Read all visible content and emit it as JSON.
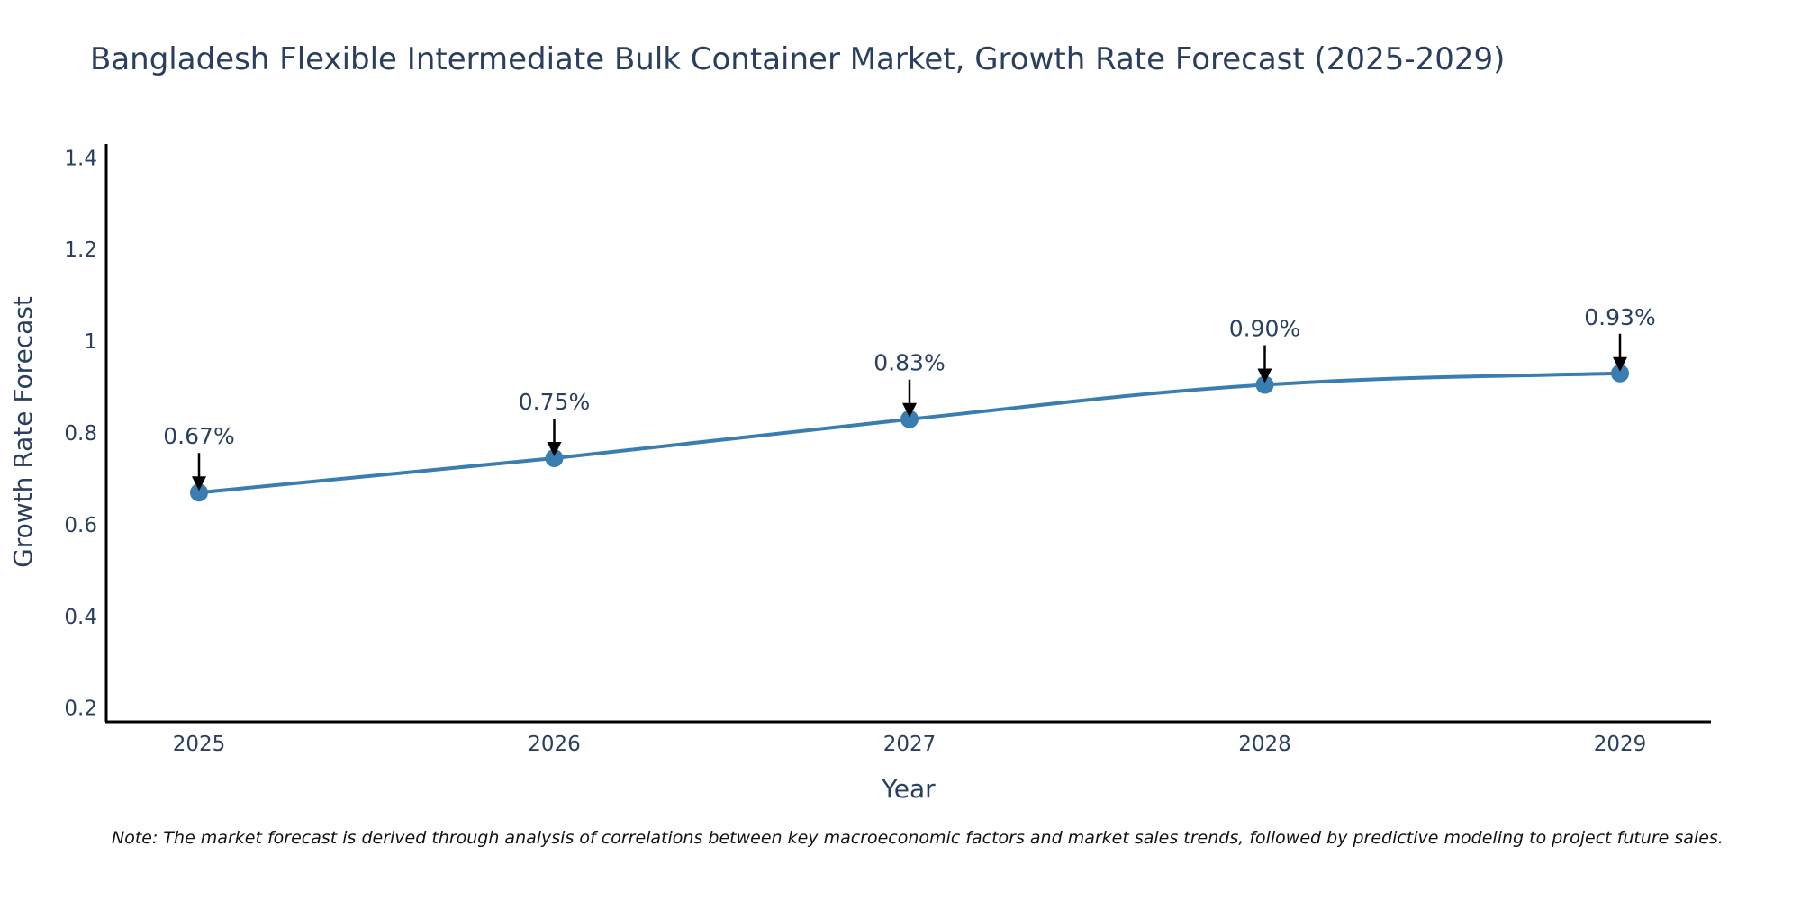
{
  "chart_data": {
    "type": "line",
    "title": "Bangladesh Flexible Intermediate Bulk Container Market, Growth Rate Forecast (2025-2029)",
    "xlabel": "Year",
    "ylabel": "Growth Rate Forecast",
    "categories": [
      "2025",
      "2026",
      "2027",
      "2028",
      "2029"
    ],
    "series": [
      {
        "name": "Growth Rate Forecast",
        "values": [
          0.67,
          0.745,
          0.83,
          0.905,
          0.93
        ],
        "color": "#3a7db0"
      }
    ],
    "annotations": [
      "0.67%",
      "0.75%",
      "0.83%",
      "0.90%",
      "0.93%"
    ],
    "yticks": [
      0.2,
      0.4,
      0.6,
      0.8,
      1.0,
      1.2,
      1.4
    ],
    "ytick_labels": [
      "0.2",
      "0.4",
      "0.6",
      "0.8",
      "1",
      "1.2",
      "1.4"
    ],
    "ylim": [
      0.17,
      1.43
    ],
    "grid": false,
    "legend": "none"
  },
  "note": "Note: The market forecast is derived through analysis of correlations between key macroeconomic factors and market sales trends, followed by predictive modeling to project future sales."
}
